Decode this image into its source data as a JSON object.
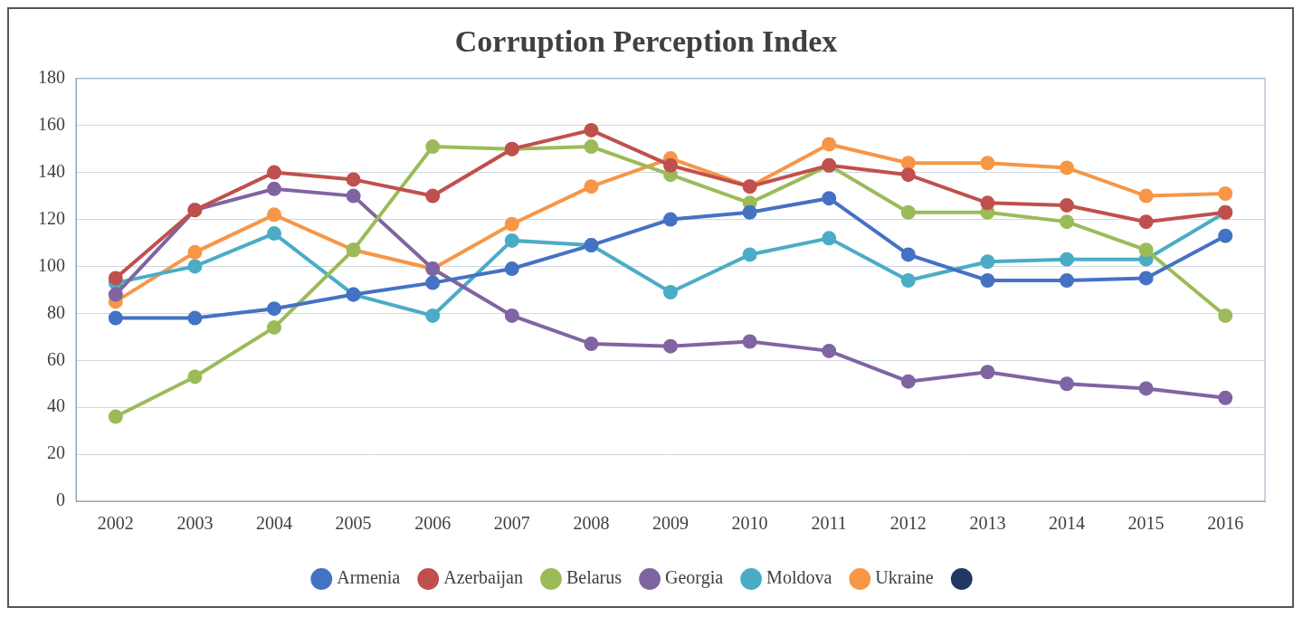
{
  "chart_data": {
    "type": "line",
    "title": "Corruption Perception Index",
    "categories": [
      "2002",
      "2003",
      "2004",
      "2005",
      "2006",
      "2007",
      "2008",
      "2009",
      "2010",
      "2011",
      "2012",
      "2013",
      "2014",
      "2015",
      "2016"
    ],
    "series": [
      {
        "name": "Armenia",
        "color": "#4472c4",
        "values": [
          78,
          78,
          82,
          88,
          93,
          99,
          109,
          120,
          123,
          129,
          105,
          94,
          94,
          95,
          113
        ]
      },
      {
        "name": "Azerbaijan",
        "color": "#c0504d",
        "values": [
          95,
          124,
          140,
          137,
          130,
          150,
          158,
          143,
          134,
          143,
          139,
          127,
          126,
          119,
          123
        ]
      },
      {
        "name": "Belarus",
        "color": "#9bbb59",
        "values": [
          36,
          53,
          74,
          107,
          151,
          150,
          151,
          139,
          127,
          143,
          123,
          123,
          119,
          107,
          79
        ]
      },
      {
        "name": "Georgia",
        "color": "#8064a2",
        "values": [
          88,
          124,
          133,
          130,
          99,
          79,
          67,
          66,
          68,
          64,
          51,
          55,
          50,
          48,
          44
        ]
      },
      {
        "name": "Moldova",
        "color": "#4bacc6",
        "values": [
          93,
          100,
          114,
          88,
          79,
          111,
          109,
          89,
          105,
          112,
          94,
          102,
          103,
          103,
          123
        ]
      },
      {
        "name": "Ukraine",
        "color": "#f79646",
        "values": [
          85,
          106,
          122,
          107,
          99,
          118,
          134,
          146,
          134,
          152,
          144,
          144,
          142,
          130,
          131
        ]
      },
      {
        "name": null,
        "color": "#1f3864",
        "values": [
          null,
          null,
          null,
          null,
          null,
          null,
          null,
          null,
          null,
          null,
          null,
          null,
          null,
          null,
          null
        ]
      }
    ],
    "ylim": [
      0,
      180
    ],
    "yticks": [
      0,
      20,
      40,
      60,
      80,
      100,
      120,
      140,
      160,
      180
    ],
    "grid": true,
    "legend": "bottom",
    "marker": "circle"
  }
}
